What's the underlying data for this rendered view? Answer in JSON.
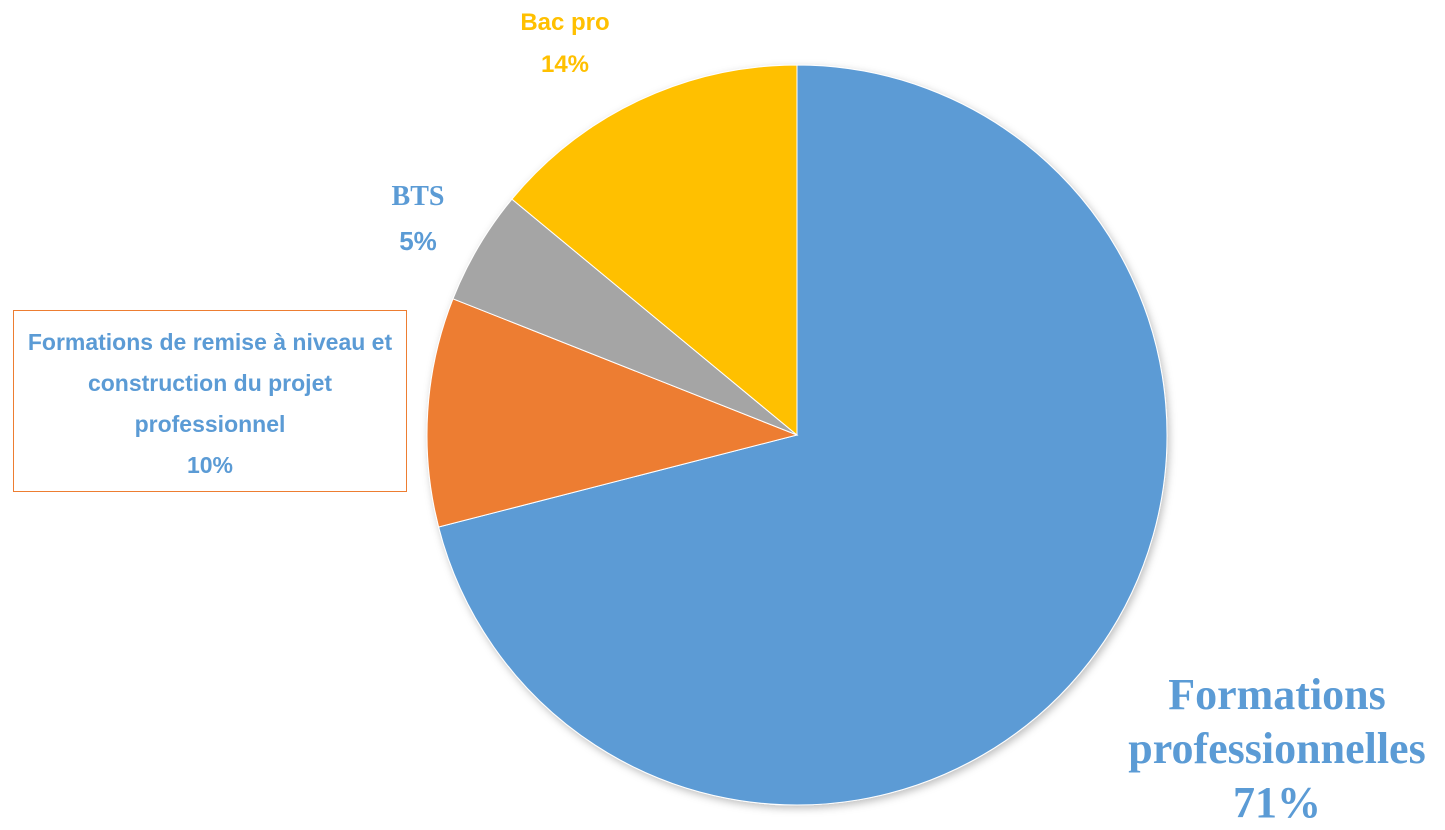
{
  "chart_data": {
    "type": "pie",
    "categories": [
      "Formations professionnelles",
      "Formations de remise à niveau et construction du projet professionnel",
      "BTS",
      "Bac pro"
    ],
    "values": [
      71,
      10,
      5,
      14
    ],
    "value_labels": [
      "71%",
      "10%",
      "5%",
      "14%"
    ],
    "colors": [
      "#5b9bd5",
      "#ed7d31",
      "#a5a5a5",
      "#ffc000"
    ]
  }
}
